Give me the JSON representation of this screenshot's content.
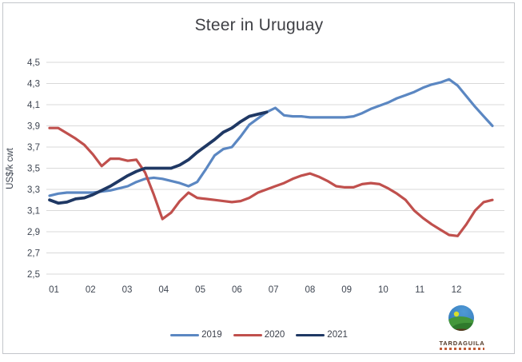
{
  "window": {
    "background": "#ffffff",
    "border_color": "#c3c6ca"
  },
  "chart_data": {
    "type": "line",
    "title": "Steer in Uruguay",
    "xlabel": "",
    "ylabel": "US$/k cwt",
    "x_unit": "weeks, labeled by month number",
    "x_tick_labels": [
      "01",
      "02",
      "03",
      "04",
      "05",
      "06",
      "07",
      "08",
      "09",
      "10",
      "11",
      "12"
    ],
    "ytick_labels": [
      "4,5",
      "4,3",
      "4,1",
      "3,9",
      "3,7",
      "3,5",
      "3,3",
      "3,1",
      "2,9",
      "2,7",
      "2,5"
    ],
    "ylim": [
      2.5,
      4.5
    ],
    "ytick_step": 0.2,
    "grid": "horizontal",
    "gridline_color": "#d9d9d9",
    "legend_position": "bottom-center",
    "axis_text_color": "#3e4551",
    "series": [
      {
        "name": "2019",
        "color": "#5b87c2",
        "values": [
          3.24,
          3.26,
          3.27,
          3.27,
          3.27,
          3.27,
          3.28,
          3.29,
          3.31,
          3.33,
          3.37,
          3.4,
          3.41,
          3.4,
          3.38,
          3.36,
          3.33,
          3.37,
          3.49,
          3.62,
          3.68,
          3.7,
          3.8,
          3.91,
          3.97,
          4.03,
          4.07,
          4.0,
          3.99,
          3.99,
          3.98,
          3.98,
          3.98,
          3.98,
          3.98,
          3.99,
          4.02,
          4.06,
          4.09,
          4.12,
          4.16,
          4.19,
          4.22,
          4.26,
          4.29,
          4.31,
          4.34,
          4.28,
          4.18,
          4.08,
          3.99,
          3.9
        ]
      },
      {
        "name": "2020",
        "color": "#c0504d",
        "values": [
          3.88,
          3.88,
          3.83,
          3.78,
          3.72,
          3.63,
          3.52,
          3.59,
          3.59,
          3.57,
          3.58,
          3.46,
          3.25,
          3.02,
          3.08,
          3.19,
          3.27,
          3.22,
          3.21,
          3.2,
          3.19,
          3.18,
          3.19,
          3.22,
          3.27,
          3.3,
          3.33,
          3.36,
          3.4,
          3.43,
          3.45,
          3.42,
          3.38,
          3.33,
          3.32,
          3.32,
          3.35,
          3.36,
          3.35,
          3.31,
          3.26,
          3.2,
          3.1,
          3.03,
          2.97,
          2.92,
          2.87,
          2.86,
          2.97,
          3.1,
          3.18,
          3.2
        ]
      },
      {
        "name": "2021",
        "color": "#1f3864",
        "values": [
          3.2,
          3.17,
          3.18,
          3.21,
          3.22,
          3.25,
          3.29,
          3.33,
          3.38,
          3.43,
          3.47,
          3.5,
          3.5,
          3.5,
          3.5,
          3.53,
          3.58,
          3.65,
          3.71,
          3.77,
          3.84,
          3.88,
          3.94,
          3.99,
          4.01,
          4.03
        ]
      }
    ]
  },
  "branding": {
    "logo_name": "tardaguila-logo",
    "logo_text": "TARDAGUILA",
    "logo_colors": {
      "sky": "#2f74b5",
      "sky_light": "#4f99d6",
      "hill": "#44973b",
      "hill_dark": "#2f7a2c",
      "sun": "#d9de2c",
      "base": "#59361f",
      "text": "#4f3523"
    }
  }
}
